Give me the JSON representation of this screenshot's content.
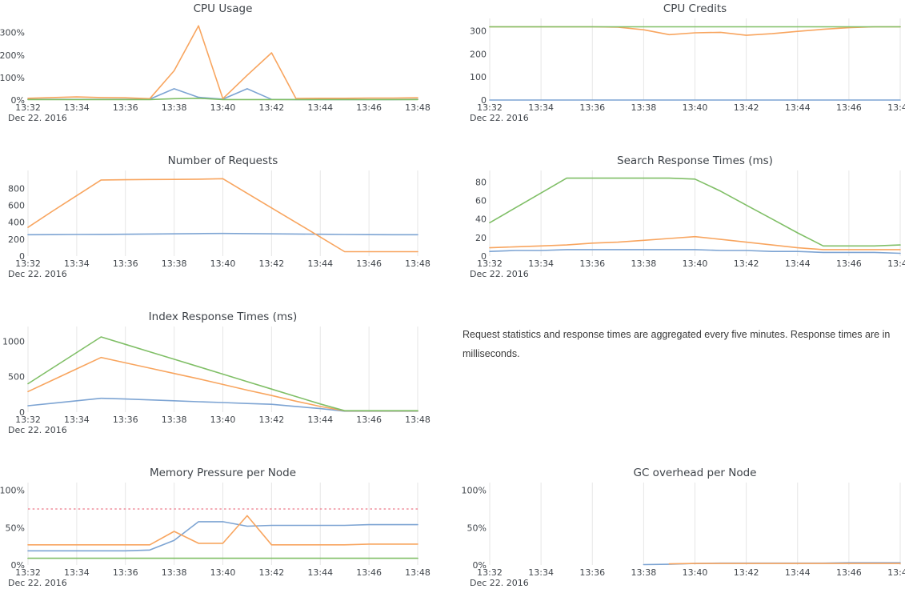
{
  "palette": {
    "blue": "#7da4d3",
    "orange": "#f8a55f",
    "green": "#80bf67",
    "threshold_red": "#ef8e9b",
    "grid": "#e6e6e6",
    "text": "#41464c"
  },
  "note": {
    "text": "Request statistics and response times are aggregated every five minutes. Response times are in milliseconds."
  },
  "chart_data": [
    {
      "id": "cpu-usage",
      "title": "CPU Usage",
      "type": "line",
      "grid": false,
      "x_tick_labels": [
        "13:32",
        "13:34",
        "13:36",
        "13:38",
        "13:40",
        "13:42",
        "13:44",
        "13:46",
        "13:48"
      ],
      "x_date_label": "Dec 22. 2016",
      "x_step_minutes": 1,
      "y_max": 345,
      "y_ticks": [
        {
          "value": 0,
          "label": "0%"
        },
        {
          "value": 100,
          "label": "100%"
        },
        {
          "value": 200,
          "label": "200%"
        },
        {
          "value": 300,
          "label": "300%"
        }
      ],
      "series": [
        {
          "name": "blue",
          "color": "blue",
          "values": [
            3,
            3,
            3,
            3,
            3,
            4,
            50,
            12,
            4,
            50,
            3,
            2,
            2,
            2,
            2,
            2,
            3
          ]
        },
        {
          "name": "orange",
          "color": "orange",
          "values": [
            8,
            11,
            14,
            11,
            10,
            6,
            130,
            330,
            6,
            110,
            210,
            7,
            8,
            8,
            9,
            9,
            10
          ]
        },
        {
          "name": "green",
          "color": "green",
          "values": [
            2,
            2,
            2,
            2,
            2,
            2,
            6,
            8,
            2,
            2,
            2,
            2,
            2,
            2,
            2,
            2,
            2
          ]
        }
      ]
    },
    {
      "id": "cpu-credits",
      "title": "CPU Credits",
      "type": "line",
      "grid": true,
      "x_tick_labels": [
        "13:32",
        "13:34",
        "13:36",
        "13:38",
        "13:40",
        "13:42",
        "13:44",
        "13:46",
        "13:48"
      ],
      "x_date_label": "Dec 22. 2016",
      "x_step_minutes": 1,
      "y_max": 337,
      "y_ticks": [
        {
          "value": 0,
          "label": "0"
        },
        {
          "value": 100,
          "label": "100"
        },
        {
          "value": 200,
          "label": "200"
        },
        {
          "value": 300,
          "label": "300"
        }
      ],
      "series": [
        {
          "name": "blue",
          "color": "blue",
          "values": [
            0,
            0,
            0,
            0,
            0,
            0,
            0,
            0,
            0,
            0,
            0,
            0,
            0,
            0,
            0,
            0,
            0
          ]
        },
        {
          "name": "orange",
          "color": "orange",
          "values": [
            318,
            318,
            318,
            318,
            318,
            316,
            305,
            284,
            292,
            294,
            281,
            288,
            298,
            307,
            314,
            318,
            318
          ]
        },
        {
          "name": "green",
          "color": "green",
          "values": [
            318,
            318,
            318,
            318,
            318,
            318,
            318,
            318,
            318,
            318,
            318,
            318,
            318,
            318,
            318,
            318,
            318
          ]
        }
      ]
    },
    {
      "id": "number-of-requests",
      "title": "Number of Requests",
      "type": "line",
      "grid": true,
      "x_tick_labels": [
        "13:32",
        "13:34",
        "13:36",
        "13:38",
        "13:40",
        "13:42",
        "13:44",
        "13:46",
        "13:48"
      ],
      "x_date_label": "Dec 22. 2016",
      "x_step_minutes": 1,
      "y_max": 965,
      "y_ticks": [
        {
          "value": 0,
          "label": "0"
        },
        {
          "value": 200,
          "label": "200"
        },
        {
          "value": 400,
          "label": "400"
        },
        {
          "value": 600,
          "label": "600"
        },
        {
          "value": 800,
          "label": "800"
        }
      ],
      "series": [
        {
          "name": "blue",
          "color": "blue",
          "values": [
            253,
            254,
            255,
            256,
            258,
            261,
            263,
            266,
            268,
            266,
            263,
            261,
            258,
            255,
            254,
            253,
            253
          ]
        },
        {
          "name": "orange",
          "color": "orange",
          "values": [
            340,
            530,
            715,
            900,
            903,
            905,
            906,
            909,
            915,
            742,
            570,
            398,
            225,
            52,
            52,
            52,
            52
          ]
        }
      ]
    },
    {
      "id": "search-response-times",
      "title": "Search Response Times (ms)",
      "type": "line",
      "grid": true,
      "x_tick_labels": [
        "13:32",
        "13:34",
        "13:36",
        "13:38",
        "13:40",
        "13:42",
        "13:44",
        "13:46",
        "13:48"
      ],
      "x_date_label": "Dec 22. 2016",
      "x_step_minutes": 1,
      "y_max": 88,
      "y_ticks": [
        {
          "value": 0,
          "label": "0"
        },
        {
          "value": 20,
          "label": "20"
        },
        {
          "value": 40,
          "label": "40"
        },
        {
          "value": 60,
          "label": "60"
        },
        {
          "value": 80,
          "label": "80"
        }
      ],
      "series": [
        {
          "name": "blue",
          "color": "blue",
          "values": [
            5,
            6,
            6,
            7,
            7,
            7,
            7,
            7,
            7,
            6,
            6,
            5,
            5,
            4,
            4,
            4,
            3
          ]
        },
        {
          "name": "orange",
          "color": "orange",
          "values": [
            9,
            10,
            11,
            12,
            14,
            15,
            17,
            19,
            21,
            18,
            15,
            12,
            9,
            7,
            7,
            7,
            7
          ]
        },
        {
          "name": "green",
          "color": "green",
          "values": [
            36,
            52,
            68,
            84,
            84,
            84,
            84,
            84,
            83,
            70,
            55,
            40,
            25,
            11,
            11,
            11,
            12
          ]
        }
      ]
    },
    {
      "id": "index-response-times",
      "title": "Index Response Times (ms)",
      "type": "line",
      "grid": true,
      "x_tick_labels": [
        "13:32",
        "13:34",
        "13:36",
        "13:38",
        "13:40",
        "13:42",
        "13:44",
        "13:46",
        "13:48"
      ],
      "x_date_label": "Dec 22. 2016",
      "x_step_minutes": 1,
      "y_max": 1150,
      "y_ticks": [
        {
          "value": 0,
          "label": "0"
        },
        {
          "value": 500,
          "label": "500"
        },
        {
          "value": 1000,
          "label": "1000"
        }
      ],
      "series": [
        {
          "name": "blue",
          "color": "blue",
          "values": [
            90,
            125,
            160,
            195,
            185,
            172,
            160,
            147,
            135,
            122,
            110,
            80,
            50,
            14,
            14,
            14,
            14
          ]
        },
        {
          "name": "orange",
          "color": "orange",
          "values": [
            290,
            450,
            610,
            770,
            695,
            620,
            545,
            470,
            390,
            310,
            235,
            155,
            80,
            18,
            18,
            18,
            18
          ]
        },
        {
          "name": "green",
          "color": "green",
          "values": [
            400,
            620,
            840,
            1060,
            955,
            850,
            745,
            640,
            535,
            430,
            325,
            220,
            115,
            20,
            20,
            20,
            20
          ]
        }
      ]
    },
    {
      "id": "memory-pressure-per-node",
      "title": "Memory Pressure per Node",
      "type": "line",
      "grid": true,
      "threshold": 75,
      "x_tick_labels": [
        "13:32",
        "13:34",
        "13:36",
        "13:38",
        "13:40",
        "13:42",
        "13:44",
        "13:46",
        "13:48"
      ],
      "x_date_label": "Dec 22. 2016",
      "x_step_minutes": 1,
      "y_max": 105,
      "y_ticks": [
        {
          "value": 0,
          "label": "0%"
        },
        {
          "value": 50,
          "label": "50%"
        },
        {
          "value": 100,
          "label": "100%"
        }
      ],
      "series": [
        {
          "name": "blue",
          "color": "blue",
          "values": [
            19,
            19,
            19,
            19,
            19,
            20,
            33,
            58,
            58,
            52,
            53,
            53,
            53,
            53,
            54,
            54,
            54
          ]
        },
        {
          "name": "orange",
          "color": "orange",
          "values": [
            27,
            27,
            27,
            27,
            27,
            27,
            45,
            29,
            29,
            66,
            27,
            27,
            27,
            27,
            28,
            28,
            28
          ]
        },
        {
          "name": "green",
          "color": "green",
          "values": [
            9,
            9,
            9,
            9,
            9,
            9,
            9,
            9,
            9,
            9,
            9,
            9,
            9,
            9,
            9,
            9,
            9
          ]
        }
      ]
    },
    {
      "id": "gc-overhead-per-node",
      "title": "GC overhead per Node",
      "type": "line",
      "grid": true,
      "x_tick_labels": [
        "13:32",
        "13:34",
        "13:36",
        "13:38",
        "13:40",
        "13:42",
        "13:44",
        "13:46",
        "13:48"
      ],
      "x_date_label": "Dec 22. 2016",
      "x_step_minutes": 1,
      "y_max": 105,
      "y_ticks": [
        {
          "value": 0,
          "label": "0%"
        },
        {
          "value": 50,
          "label": "50%"
        },
        {
          "value": 100,
          "label": "100%"
        }
      ],
      "series": [
        {
          "name": "blue",
          "color": "blue",
          "values": [
            null,
            null,
            null,
            null,
            null,
            null,
            0.5,
            1,
            2,
            2.5,
            2.5,
            2.5,
            2.5,
            2.5,
            3,
            3,
            3
          ]
        },
        {
          "name": "orange",
          "color": "orange",
          "values": [
            null,
            null,
            null,
            null,
            null,
            null,
            null,
            1.5,
            2,
            2,
            2,
            2,
            2,
            2,
            2,
            2,
            2
          ]
        }
      ]
    }
  ]
}
